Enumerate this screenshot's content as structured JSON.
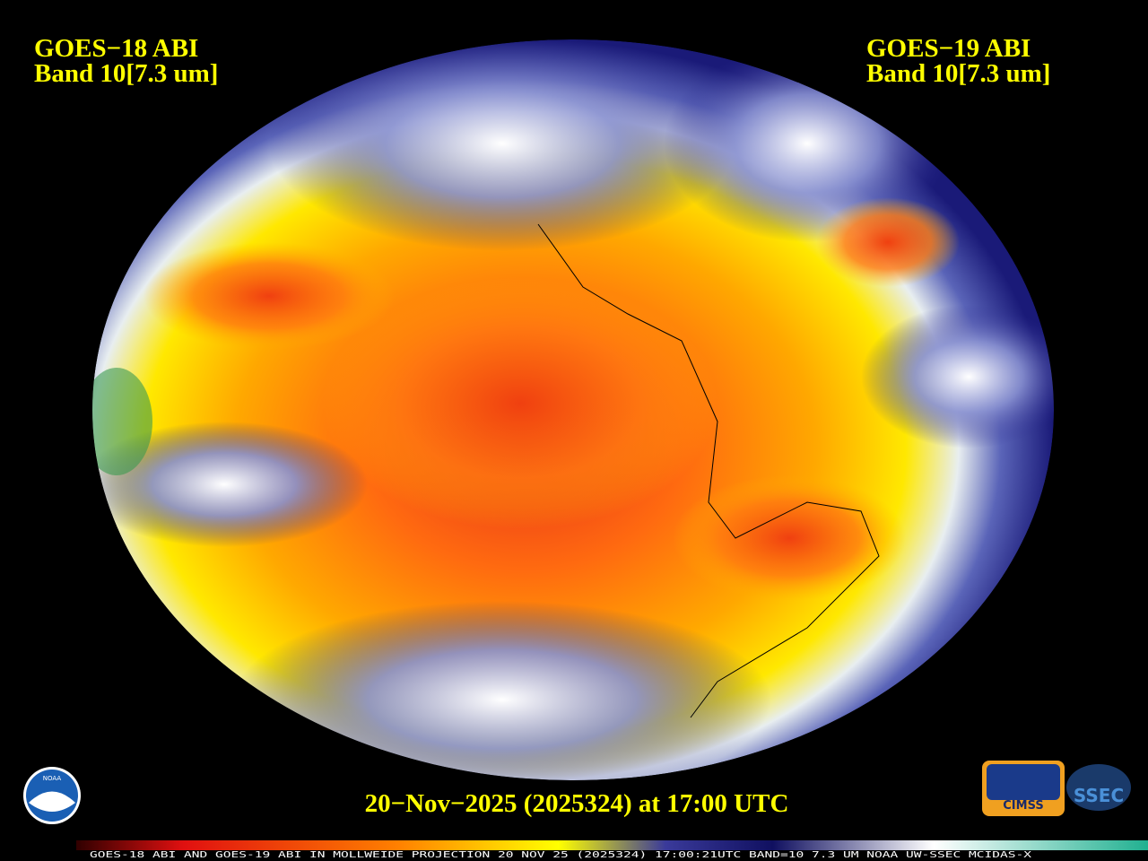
{
  "header": {
    "left": {
      "line1": "GOES−18 ABI",
      "line2": "Band 10[7.3 um]"
    },
    "right": {
      "line1": "GOES−19 ABI",
      "line2": "Band 10[7.3 um]"
    }
  },
  "footer": {
    "timestamp": "20−Nov−2025 (2025324) at 17:00 UTC",
    "caption": "GOES-18 ABI AND GOES-19 ABI IN MOLLWEIDE PROJECTION 20 NOV 25 (2025324) 17:00:21UTC BAND=10 7.3 UM NOAA UW-SSEC MCIDAS-X"
  },
  "logos": {
    "noaa": "NOAA",
    "cimss": "CIMSS",
    "ssec": "SSEC"
  }
}
